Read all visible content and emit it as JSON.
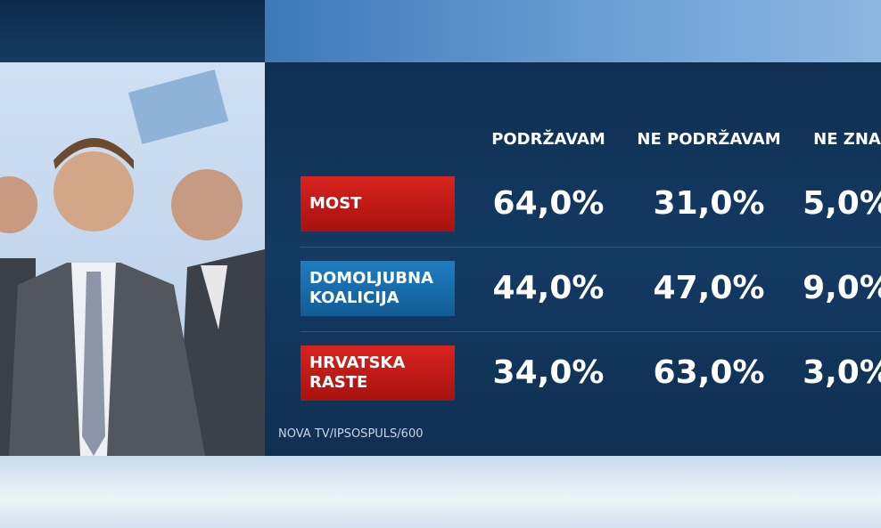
{
  "table": {
    "header": [
      "PODRŽAVAM",
      "NE PODRŽAVAM",
      "NE ZNA"
    ],
    "rows": [
      {
        "label": "MOST",
        "values": [
          "64,0%",
          "31,0%",
          "5,0%"
        ]
      },
      {
        "label": "DOMOLJUBNA KOALICIJA",
        "values": [
          "44,0%",
          "47,0%",
          "9,0%"
        ]
      },
      {
        "label": "HRVATSKA RASTE",
        "values": [
          "34,0%",
          "63,0%",
          "3,0%"
        ]
      }
    ],
    "source": "NOVA TV/IPSOSPULS/600"
  }
}
